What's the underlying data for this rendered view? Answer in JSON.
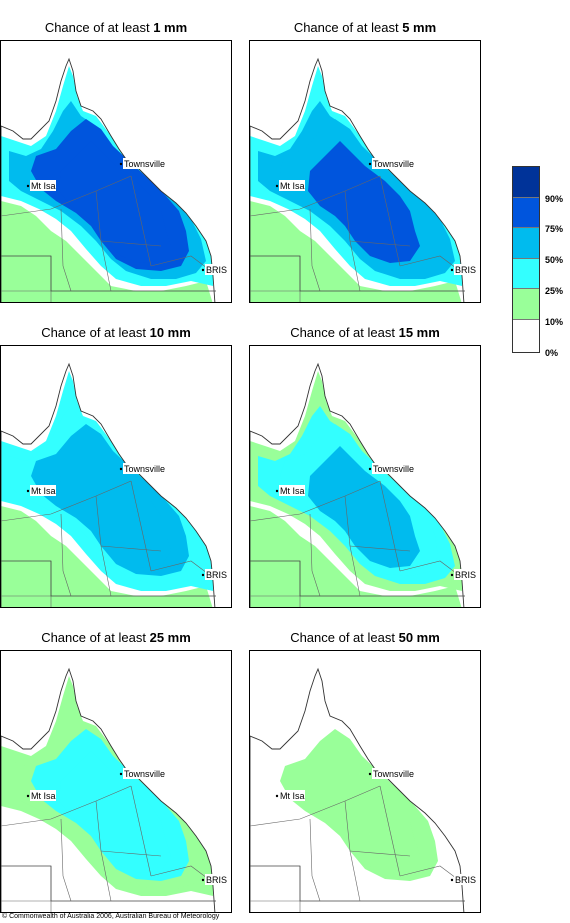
{
  "panels": [
    {
      "prefix": "Chance of at least ",
      "amount": "1 mm",
      "band": "1mm"
    },
    {
      "prefix": "Chance of at least ",
      "amount": "5 mm",
      "band": "5mm"
    },
    {
      "prefix": "Chance of at least ",
      "amount": "10 mm",
      "band": "10mm"
    },
    {
      "prefix": "Chance of at least ",
      "amount": "15 mm",
      "band": "15mm"
    },
    {
      "prefix": "Chance of at least ",
      "amount": "25 mm",
      "band": "25mm"
    },
    {
      "prefix": "Chance of at least ",
      "amount": "50 mm",
      "band": "50mm"
    }
  ],
  "places": {
    "townsville": "Townsville",
    "mt_isa": "Mt Isa",
    "brisbane": "BRIS"
  },
  "legend": {
    "ticks": [
      "90%",
      "75%",
      "50%",
      "25%",
      "10%",
      "0%"
    ],
    "colors": [
      "#003399",
      "#0055dd",
      "#00bbee",
      "#33ffff",
      "#99ff99",
      "#ffffff"
    ],
    "levels": [
      {
        "range": "90-100%",
        "color": "#003399"
      },
      {
        "range": "75-90%",
        "color": "#0055dd"
      },
      {
        "range": "50-75%",
        "color": "#00bbee"
      },
      {
        "range": "25-50%",
        "color": "#33ffff"
      },
      {
        "range": "10-25%",
        "color": "#99ff99"
      },
      {
        "range": "0-10%",
        "color": "#ffffff"
      }
    ]
  },
  "copyright": "© Commonwealth of Australia 2006, Australian Bureau of Meteorology"
}
